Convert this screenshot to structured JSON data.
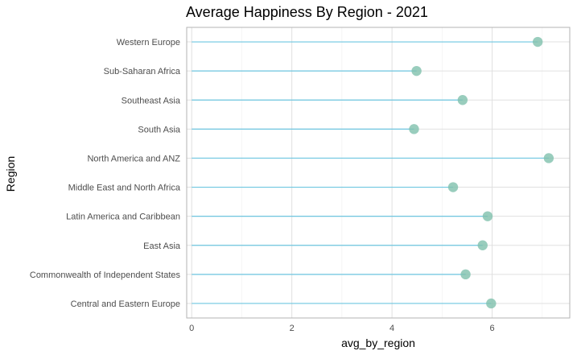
{
  "chart_data": {
    "type": "lollipop",
    "title": "Average Happiness By Region - 2021",
    "xlabel": "avg_by_region",
    "ylabel": "Region",
    "xlim": [
      -0.1,
      7.55
    ],
    "xticks": [
      0,
      2,
      4,
      6
    ],
    "xtick_labels": [
      "0",
      "2",
      "4",
      "6"
    ],
    "grid": true,
    "categories": [
      "Central and Eastern Europe",
      "Commonwealth of Independent States",
      "East Asia",
      "Latin America and Caribbean",
      "Middle East and North Africa",
      "North America and ANZ",
      "South Asia",
      "Southeast Asia",
      "Sub-Saharan Africa",
      "Western Europe"
    ],
    "values": [
      5.98,
      5.47,
      5.81,
      5.91,
      5.22,
      7.13,
      4.44,
      5.41,
      4.49,
      6.91
    ],
    "colors": {
      "stem": "#6ec6e0",
      "point": "#80c1ac",
      "panel_border": "#b3b3b3",
      "grid_major": "#e0e0e0",
      "grid_minor": "#f0f0f0"
    }
  }
}
